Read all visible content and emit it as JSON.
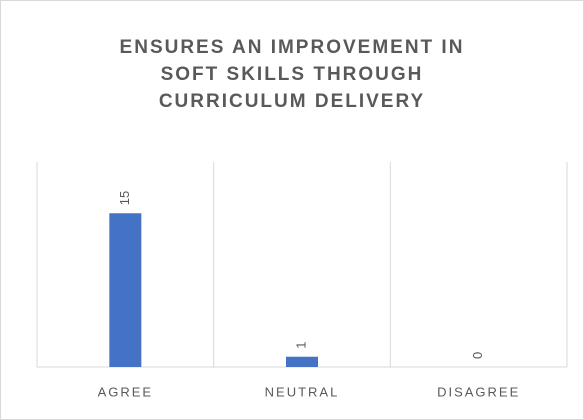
{
  "chart_data": {
    "type": "bar",
    "title": "ENSURES AN IMPROVEMENT IN SOFT SKILLS THROUGH CURRICULUM DELIVERY",
    "categories": [
      "AGREE",
      "NEUTRAL",
      "DISAGREE"
    ],
    "values": [
      15,
      1,
      0
    ],
    "color": "#4472c4",
    "ylim": [
      0,
      20
    ]
  }
}
